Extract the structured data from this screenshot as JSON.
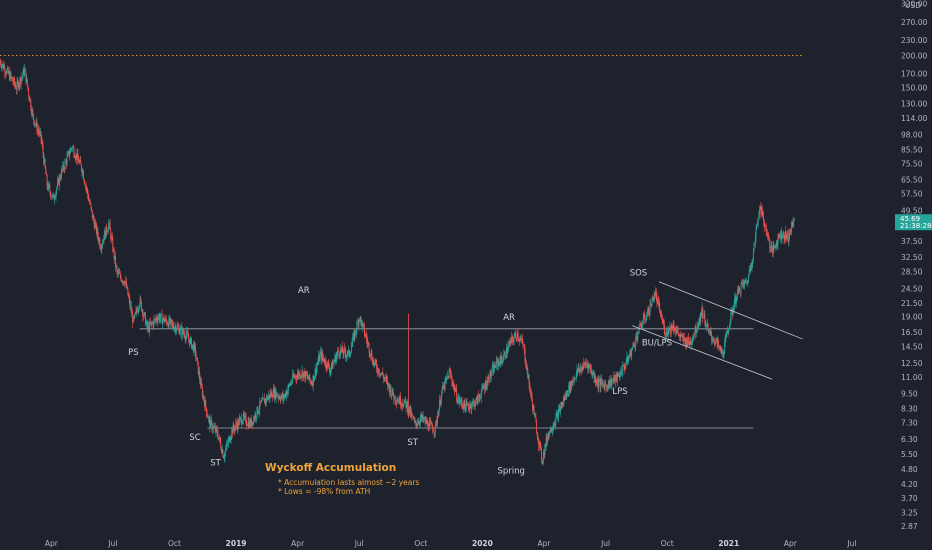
{
  "chart_data": {
    "type": "candlestick",
    "title": "Wyckoff Accumulation",
    "notes": [
      "* Accumulation lasts almost ~2 years",
      "* Lows = -98% from ATH"
    ],
    "currency": "USD",
    "y_scale": "log",
    "ylim": [
      2.6,
      330
    ],
    "y_ticks": [
      {
        "v": 320,
        "label": "320.00"
      },
      {
        "v": 270,
        "label": "270.00"
      },
      {
        "v": 230,
        "label": "230.00"
      },
      {
        "v": 200,
        "label": "200.00"
      },
      {
        "v": 170,
        "label": "170.00"
      },
      {
        "v": 150,
        "label": "150.00"
      },
      {
        "v": 130,
        "label": "130.00"
      },
      {
        "v": 114,
        "label": "114.00"
      },
      {
        "v": 98,
        "label": "98.00"
      },
      {
        "v": 85.5,
        "label": "85.50"
      },
      {
        "v": 75.5,
        "label": "75.50"
      },
      {
        "v": 65.5,
        "label": "65.50"
      },
      {
        "v": 57.5,
        "label": "57.50"
      },
      {
        "v": 49.5,
        "label": "49.50"
      },
      {
        "v": 37.5,
        "label": "37.50"
      },
      {
        "v": 32.5,
        "label": "32.50"
      },
      {
        "v": 28.5,
        "label": "28.50"
      },
      {
        "v": 24.5,
        "label": "24.50"
      },
      {
        "v": 21.5,
        "label": "21.50"
      },
      {
        "v": 19,
        "label": "19.00"
      },
      {
        "v": 16.5,
        "label": "16.50"
      },
      {
        "v": 14.5,
        "label": "14.50"
      },
      {
        "v": 12.5,
        "label": "12.50"
      },
      {
        "v": 11,
        "label": "11.00"
      },
      {
        "v": 9.5,
        "label": "9.50"
      },
      {
        "v": 8.3,
        "label": "8.30"
      },
      {
        "v": 7.3,
        "label": "7.30"
      },
      {
        "v": 6.3,
        "label": "6.30"
      },
      {
        "v": 5.5,
        "label": "5.50"
      },
      {
        "v": 4.8,
        "label": "4.80"
      },
      {
        "v": 4.2,
        "label": "4.20"
      },
      {
        "v": 3.7,
        "label": "3.70"
      },
      {
        "v": 3.25,
        "label": "3.25"
      },
      {
        "v": 2.87,
        "label": "2.87"
      }
    ],
    "x_ticks": [
      {
        "t": 3,
        "label": "Apr",
        "bold": false
      },
      {
        "t": 6,
        "label": "Jul",
        "bold": false
      },
      {
        "t": 9,
        "label": "Oct",
        "bold": false
      },
      {
        "t": 12,
        "label": "2019",
        "bold": true
      },
      {
        "t": 15,
        "label": "Apr",
        "bold": false
      },
      {
        "t": 18,
        "label": "Jul",
        "bold": false
      },
      {
        "t": 21,
        "label": "Oct",
        "bold": false
      },
      {
        "t": 24,
        "label": "2020",
        "bold": true
      },
      {
        "t": 27,
        "label": "Apr",
        "bold": false
      },
      {
        "t": 30,
        "label": "Jul",
        "bold": false
      },
      {
        "t": 33,
        "label": "Oct",
        "bold": false
      },
      {
        "t": 36,
        "label": "2021",
        "bold": true
      },
      {
        "t": 39,
        "label": "Apr",
        "bold": false
      },
      {
        "t": 42,
        "label": "Jul",
        "bold": false
      }
    ],
    "x_unit": "months since Jan 2018",
    "xlim": [
      0.5,
      44.0
    ],
    "last_price": {
      "value": 45.69,
      "label": "45.69",
      "countdown": "21:38:28"
    },
    "series": [
      {
        "name": "price",
        "path": [
          [
            0.5,
            190
          ],
          [
            1.0,
            165
          ],
          [
            1.3,
            150
          ],
          [
            1.7,
            175
          ],
          [
            2.1,
            115
          ],
          [
            2.5,
            95
          ],
          [
            2.8,
            62
          ],
          [
            3.1,
            55
          ],
          [
            3.5,
            70
          ],
          [
            4.0,
            88
          ],
          [
            4.5,
            72
          ],
          [
            5.0,
            47
          ],
          [
            5.4,
            36
          ],
          [
            5.8,
            44
          ],
          [
            6.2,
            28
          ],
          [
            6.6,
            26
          ],
          [
            7.0,
            18
          ],
          [
            7.3,
            22
          ],
          [
            7.7,
            17
          ],
          [
            8.2,
            19
          ],
          [
            8.7,
            18
          ],
          [
            9.2,
            17
          ],
          [
            9.6,
            16
          ],
          [
            10.0,
            14
          ],
          [
            10.3,
            10
          ],
          [
            10.7,
            7.3
          ],
          [
            11.1,
            6.6
          ],
          [
            11.4,
            5.4
          ],
          [
            11.8,
            6.8
          ],
          [
            12.3,
            7.6
          ],
          [
            12.7,
            7.2
          ],
          [
            13.2,
            8.6
          ],
          [
            13.8,
            9.6
          ],
          [
            14.3,
            9.1
          ],
          [
            14.8,
            11
          ],
          [
            15.2,
            11.5
          ],
          [
            15.7,
            10.5
          ],
          [
            16.1,
            13.5
          ],
          [
            16.6,
            11.8
          ],
          [
            17.0,
            14
          ],
          [
            17.5,
            13.5
          ],
          [
            17.8,
            16.5
          ],
          [
            18.0,
            19
          ],
          [
            18.3,
            16
          ],
          [
            18.7,
            12.5
          ],
          [
            19.2,
            11
          ],
          [
            19.7,
            9.2
          ],
          [
            20.3,
            8.6
          ],
          [
            20.7,
            7.2
          ],
          [
            21.0,
            7.6
          ],
          [
            21.4,
            7.1
          ],
          [
            21.7,
            6.9
          ],
          [
            22.0,
            9.5
          ],
          [
            22.4,
            11.5
          ],
          [
            22.8,
            9
          ],
          [
            23.2,
            8.4
          ],
          [
            23.7,
            8.8
          ],
          [
            24.2,
            10.5
          ],
          [
            24.7,
            12.5
          ],
          [
            25.0,
            13
          ],
          [
            25.4,
            15.2
          ],
          [
            25.7,
            16.3
          ],
          [
            26.0,
            14.5
          ],
          [
            26.3,
            10
          ],
          [
            26.6,
            7.2
          ],
          [
            26.9,
            5.2
          ],
          [
            27.2,
            6.6
          ],
          [
            27.6,
            7.6
          ],
          [
            28.1,
            9.5
          ],
          [
            28.6,
            11.5
          ],
          [
            29.1,
            12.5
          ],
          [
            29.6,
            10.5
          ],
          [
            30.0,
            10.2
          ],
          [
            30.6,
            11
          ],
          [
            31.0,
            12.5
          ],
          [
            31.3,
            14.2
          ],
          [
            31.7,
            17.5
          ],
          [
            32.1,
            20
          ],
          [
            32.4,
            23.5
          ],
          [
            32.6,
            20.5
          ],
          [
            32.9,
            16.5
          ],
          [
            33.3,
            17.5
          ],
          [
            33.7,
            15.5
          ],
          [
            34.1,
            15
          ],
          [
            34.4,
            17
          ],
          [
            34.7,
            20
          ],
          [
            35.0,
            16.5
          ],
          [
            35.4,
            15
          ],
          [
            35.7,
            13.5
          ],
          [
            36.0,
            17.5
          ],
          [
            36.3,
            22
          ],
          [
            36.6,
            25
          ],
          [
            36.9,
            26
          ],
          [
            37.2,
            34
          ],
          [
            37.5,
            52
          ],
          [
            37.8,
            42
          ],
          [
            38.1,
            34
          ],
          [
            38.5,
            40
          ],
          [
            38.9,
            39
          ],
          [
            39.2,
            45.69
          ]
        ]
      }
    ],
    "levels": [
      {
        "name": "AR resistance",
        "value": 17.0,
        "x_from": 7.3,
        "x_to": 37.2
      },
      {
        "name": "SC support",
        "value": 6.95,
        "x_from": 10.6,
        "x_to": 37.2
      },
      {
        "name": "ATH dotted",
        "value": 200,
        "x_from": 0.5,
        "x_to": 39.6
      }
    ],
    "channel": {
      "upper": [
        [
          32.6,
          26
        ],
        [
          39.6,
          15.5
        ]
      ],
      "lower": [
        [
          31.3,
          17.5
        ],
        [
          38.1,
          10.8
        ]
      ]
    },
    "spike": {
      "t": 20.4,
      "from": 7.6,
      "to": 19.5
    },
    "annotations": [
      {
        "label": "PS",
        "t": 7.0,
        "v": 13.4
      },
      {
        "label": "SC",
        "t": 10.0,
        "v": 6.25
      },
      {
        "label": "AR",
        "t": 15.3,
        "v": 23.5
      },
      {
        "label": "ST",
        "t": 11.0,
        "v": 4.95
      },
      {
        "label": "ST",
        "t": 20.6,
        "v": 5.95
      },
      {
        "label": "AR",
        "t": 25.3,
        "v": 18.4
      },
      {
        "label": "Spring",
        "t": 25.4,
        "v": 4.6
      },
      {
        "label": "SOS",
        "t": 31.6,
        "v": 27.5
      },
      {
        "label": "BU/LPS",
        "t": 32.5,
        "v": 14.6
      },
      {
        "label": "LPS",
        "t": 30.7,
        "v": 9.45
      }
    ]
  }
}
